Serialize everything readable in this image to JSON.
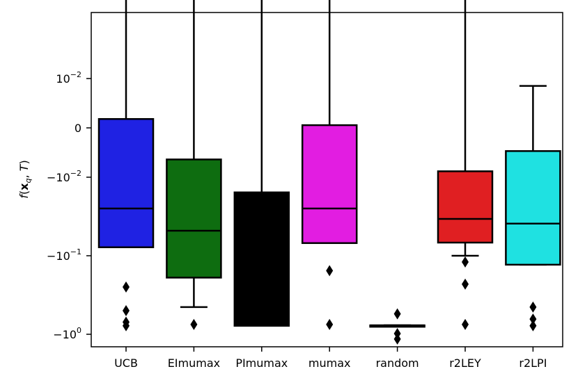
{
  "chart_data": {
    "type": "box",
    "title": "",
    "xlabel": "",
    "ylabel": "f(x_q, T)",
    "y_scale": "symlog",
    "y_ticks": [
      {
        "value": 0.01,
        "label": "10",
        "exp": "-2"
      },
      {
        "value": 0,
        "label": "0",
        "exp": ""
      },
      {
        "value": -0.01,
        "label": "−10",
        "exp": "-2"
      },
      {
        "value": -0.1,
        "label": "−10",
        "exp": "-1"
      },
      {
        "value": -1,
        "label": "−10",
        "exp": "0"
      }
    ],
    "categories": [
      "UCB",
      "EImumax",
      "PImumax",
      "mumax",
      "random",
      "r2LEY",
      "r2LPI"
    ],
    "boxes": [
      {
        "name": "UCB",
        "color": "#1f22e3",
        "whislo": -0.078,
        "q1": -0.078,
        "med": -0.025,
        "q3": 0.0018,
        "whishi": 0.2,
        "fliers": [
          -0.25,
          -0.5,
          -0.7,
          -0.78
        ]
      },
      {
        "name": "EImumax",
        "color": "#0e6d10",
        "whislo": -0.45,
        "q1": -0.19,
        "med": -0.048,
        "q3": -0.0064,
        "whishi": 0.18,
        "fliers": [
          -0.75
        ]
      },
      {
        "name": "PImumax",
        "color": "#000000",
        "whislo": -0.78,
        "q1": -0.78,
        "med": -0.78,
        "q3": -0.0156,
        "whishi": 0.175,
        "fliers": []
      },
      {
        "name": "mumax",
        "color": "#e21de1",
        "whislo": -0.069,
        "q1": -0.069,
        "med": -0.025,
        "q3": 0.00055,
        "whishi": 0.19,
        "fliers": [
          -0.155,
          -0.75
        ]
      },
      {
        "name": "random",
        "color": "#000000",
        "whislo": -0.77,
        "q1": -0.77,
        "med": -0.77,
        "q3": -0.77,
        "whishi": -0.77,
        "fliers": [
          -0.55,
          -0.98,
          -1.15
        ]
      },
      {
        "name": "r2LEY",
        "color": "#e01f22",
        "whislo": -0.1,
        "q1": -0.068,
        "med": -0.034,
        "q3": -0.0088,
        "whishi": 0.153,
        "fliers": [
          -0.12,
          -0.23,
          -0.75
        ]
      },
      {
        "name": "r2LPI",
        "color": "#1fe1e1",
        "whislo": -0.13,
        "q1": -0.13,
        "med": -0.039,
        "q3": -0.0047,
        "whishi": 0.0085,
        "fliers": [
          -0.45,
          -0.64,
          -0.78
        ]
      }
    ]
  }
}
